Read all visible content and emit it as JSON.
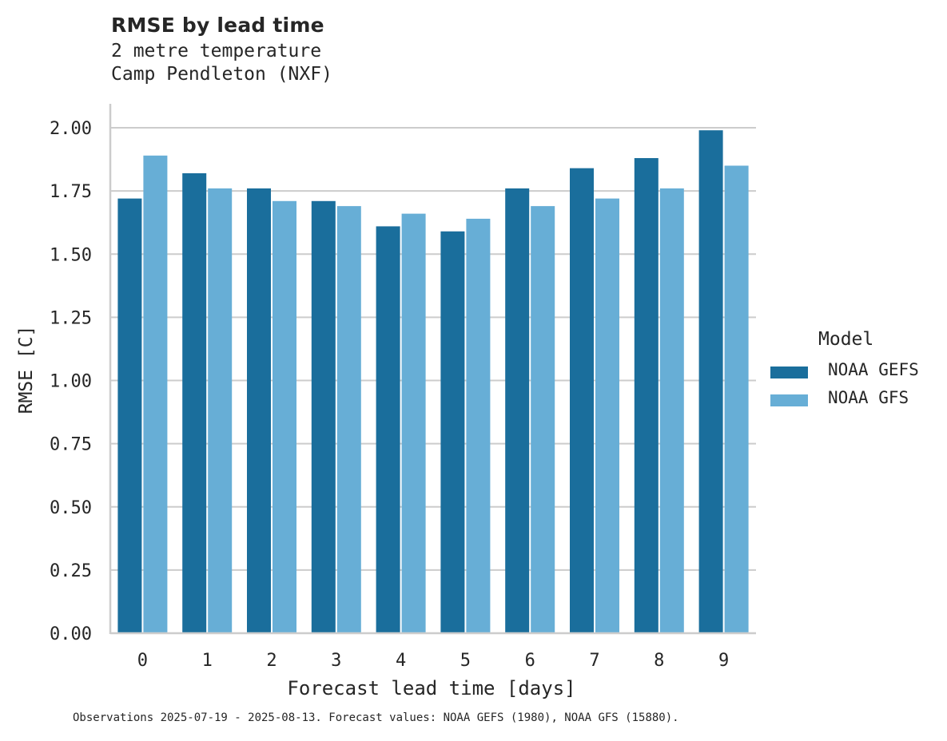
{
  "header": {
    "title": "RMSE by lead time",
    "subtitle_line1": "2 metre temperature",
    "subtitle_line2": "Camp Pendleton (NXF)"
  },
  "footnote": "Observations 2025-07-19 - 2025-08-13. Forecast values: NOAA GEFS (1980), NOAA GFS (15880).",
  "legend": {
    "title": "Model",
    "items": [
      {
        "label": "NOAA GEFS",
        "color": "#1a6e9c"
      },
      {
        "label": "NOAA GFS",
        "color": "#67aed6"
      }
    ]
  },
  "colors": {
    "grid": "#cccccc",
    "spine": "#cccccc",
    "text": "#262626"
  },
  "chart_data": {
    "type": "bar",
    "title": "RMSE by lead time",
    "subtitle": "2 metre temperature / Camp Pendleton (NXF)",
    "xlabel": "Forecast lead time [days]",
    "ylabel": "RMSE [C]",
    "categories": [
      "0",
      "1",
      "2",
      "3",
      "4",
      "5",
      "6",
      "7",
      "8",
      "9"
    ],
    "series": [
      {
        "name": "NOAA GEFS",
        "color": "#1a6e9c",
        "values": [
          1.72,
          1.82,
          1.76,
          1.71,
          1.61,
          1.59,
          1.76,
          1.84,
          1.88,
          1.99
        ]
      },
      {
        "name": "NOAA GFS",
        "color": "#67aed6",
        "values": [
          1.89,
          1.76,
          1.71,
          1.69,
          1.66,
          1.64,
          1.69,
          1.72,
          1.76,
          1.85
        ]
      }
    ],
    "yticks": [
      "0.00",
      "0.25",
      "0.50",
      "0.75",
      "1.00",
      "1.25",
      "1.50",
      "1.75",
      "2.00"
    ],
    "ylim": [
      0,
      2.1
    ],
    "grid": "horizontal",
    "legend_position": "right",
    "legend_title": "Model"
  }
}
